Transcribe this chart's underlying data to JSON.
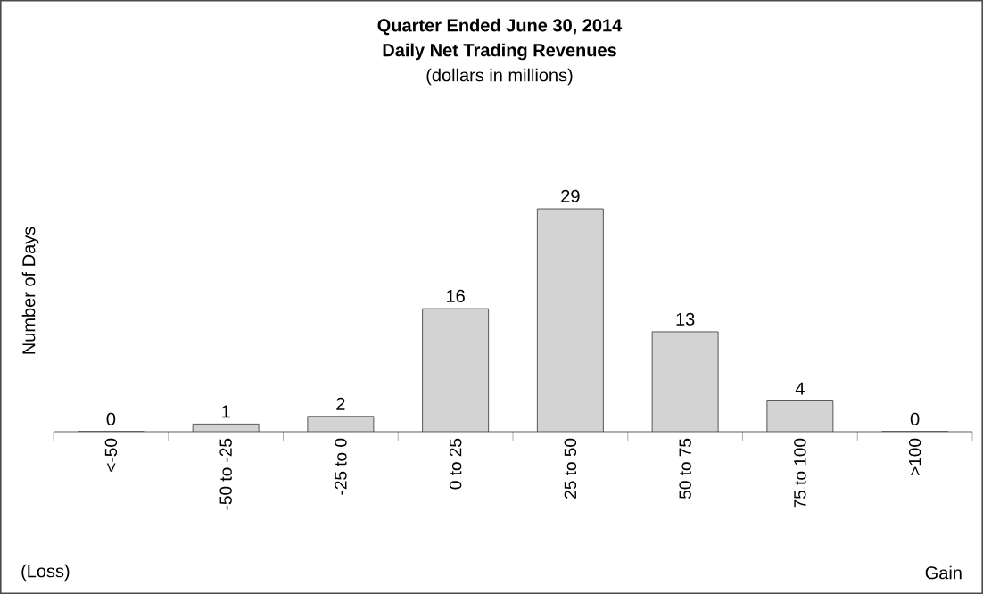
{
  "chart_data": {
    "type": "bar",
    "title": "Quarter Ended June 30, 2014",
    "subtitle": "Daily Net Trading Revenues",
    "ylabel": "Number of Days",
    "annotations": [
      "(dollars in millions)",
      "(Loss)",
      "Gain"
    ],
    "categories": [
      "<-50",
      "-50 to -25",
      "-25 to 0",
      "0 to 25",
      "25 to 50",
      "50 to 75",
      "75 to 100",
      ">100"
    ],
    "values": [
      0,
      1,
      2,
      16,
      29,
      13,
      4,
      0
    ],
    "color": "#d3d3d3",
    "data_labels": true,
    "grid": false
  }
}
